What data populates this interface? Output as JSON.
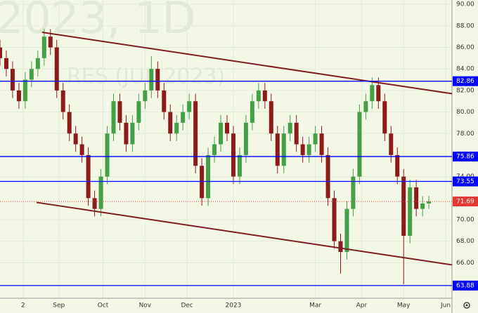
{
  "chart_data": {
    "type": "candlestick",
    "watermark": "2023, 1D",
    "watermark_sub": "RES (JUL 2023)",
    "x": [
      0,
      3,
      6,
      9,
      12,
      15,
      18,
      21,
      24,
      27,
      30,
      33,
      36,
      39,
      42,
      45,
      48,
      51,
      54,
      57,
      60,
      63,
      66,
      69,
      72,
      75,
      78,
      81,
      84,
      87,
      90,
      93,
      96,
      99,
      102,
      105,
      108,
      111,
      114,
      117,
      120,
      123,
      126,
      129,
      132,
      135,
      138,
      141,
      144,
      147,
      150,
      153,
      156,
      159,
      162,
      165,
      168,
      171,
      174,
      177,
      180,
      183,
      186,
      189,
      192,
      195,
      198,
      201,
      204
    ],
    "open": [
      86,
      85,
      84,
      82,
      81,
      83,
      84,
      85,
      87,
      86,
      82,
      80,
      78,
      77,
      76,
      72,
      71,
      74,
      78,
      81,
      79,
      77,
      79,
      81,
      82,
      84,
      82,
      80,
      78,
      79,
      80,
      81,
      75,
      72,
      76,
      77,
      79,
      78,
      74,
      76,
      79,
      81,
      82,
      81,
      78,
      75,
      78,
      79,
      77,
      76,
      77,
      78,
      76,
      72,
      68,
      67,
      71,
      74,
      80,
      81,
      82.5,
      81,
      78,
      76,
      74,
      68.5,
      73,
      71,
      71.5
    ],
    "high": [
      86.7,
      85.7,
      84.7,
      82.7,
      83.7,
      84.7,
      85.7,
      87.7,
      87.7,
      86.7,
      82.7,
      80.7,
      78.7,
      77.7,
      76.7,
      72.7,
      74.7,
      78.7,
      81.7,
      81.7,
      79.7,
      79.7,
      81.7,
      82.7,
      85.2,
      84.7,
      82.7,
      80.7,
      79.7,
      80.7,
      81.7,
      81.7,
      75.7,
      76.7,
      77.7,
      79.7,
      79.7,
      78.7,
      76.7,
      79.7,
      81.7,
      82.7,
      82.7,
      81.7,
      78.7,
      78.7,
      79.7,
      79.7,
      77.7,
      77.7,
      78.7,
      78.7,
      76.7,
      72.7,
      68.7,
      71.7,
      74.7,
      80.7,
      81.7,
      83.2,
      83.2,
      81.7,
      78.7,
      76.7,
      74.7,
      73.7,
      73.7,
      72.2,
      72.2
    ],
    "low": [
      84.3,
      83.3,
      81.3,
      80.3,
      80.3,
      82.3,
      83.3,
      84.3,
      85.3,
      81.3,
      79.3,
      77.3,
      76.3,
      75.3,
      71.3,
      70.3,
      70.3,
      73.3,
      77.3,
      78.3,
      76.3,
      76.3,
      78.3,
      80.3,
      81.3,
      81.3,
      79.3,
      77.3,
      77.3,
      78.3,
      79.3,
      74.3,
      71.3,
      71.3,
      75.3,
      76.3,
      77.3,
      73.3,
      73.3,
      75.3,
      78.3,
      80.3,
      80.3,
      77.3,
      74.3,
      74.3,
      77.3,
      76.3,
      75.3,
      75.3,
      76.3,
      75.3,
      71.3,
      67.3,
      65.0,
      66.3,
      70.3,
      73.3,
      79.3,
      80.3,
      80.3,
      77.3,
      75.3,
      73.3,
      64.0,
      67.8,
      70.3,
      70.3,
      71.0
    ],
    "close": [
      85,
      84,
      82,
      81,
      83,
      84,
      85,
      87,
      86,
      82,
      80,
      78,
      77,
      76,
      72,
      71,
      74,
      78,
      81,
      79,
      77,
      79,
      81,
      82,
      84,
      82,
      80,
      78,
      79,
      80,
      81,
      75,
      72,
      76,
      77,
      79,
      78,
      74,
      76,
      79,
      81,
      82,
      81,
      78,
      75,
      78,
      79,
      77,
      76,
      77,
      78,
      76,
      72,
      68,
      67,
      71,
      74,
      80,
      81,
      82.5,
      81,
      78,
      76,
      74,
      68.5,
      73,
      71,
      71.5,
      71.69
    ],
    "up_color": "#43a047",
    "down_color": "#8e1b1b",
    "xlim": [
      0,
      215
    ],
    "ylim": [
      62.7,
      90.4
    ],
    "xticks": [
      {
        "value": 11,
        "label": "2"
      },
      {
        "value": 28,
        "label": "Sep"
      },
      {
        "value": 49,
        "label": "Oct"
      },
      {
        "value": 69,
        "label": "Nov"
      },
      {
        "value": 89,
        "label": "Dec"
      },
      {
        "value": 111,
        "label": "2023"
      },
      {
        "value": 150,
        "label": "Mar"
      },
      {
        "value": 172,
        "label": "Apr"
      },
      {
        "value": 192,
        "label": "May"
      },
      {
        "value": 212,
        "label": "Jun"
      }
    ],
    "yticks": [
      {
        "value": 66,
        "label": "66.00"
      },
      {
        "value": 68,
        "label": "68.00"
      },
      {
        "value": 70,
        "label": "70.00"
      },
      {
        "value": 74,
        "label": "74.00"
      },
      {
        "value": 76,
        "label": "76.00"
      },
      {
        "value": 78,
        "label": "78.00"
      },
      {
        "value": 80,
        "label": "80.00"
      },
      {
        "value": 82,
        "label": "82.00"
      },
      {
        "value": 84,
        "label": "84.00"
      },
      {
        "value": 86,
        "label": "86.00"
      },
      {
        "value": 88,
        "label": "88.00"
      },
      {
        "value": 90,
        "label": "90.00"
      }
    ],
    "grid": true,
    "levels": [
      82.86,
      75.86,
      73.55,
      63.88
    ],
    "level_color": "#0000ff",
    "last_price": 71.69,
    "last_price_color": "#e53935",
    "trendlines": [
      {
        "x": [
          20,
          215
        ],
        "y": [
          87.4,
          81.7
        ]
      },
      {
        "x": [
          17.4,
          215
        ],
        "y": [
          71.6,
          65.8
        ]
      }
    ],
    "trendline_color": "#7b1f1f"
  }
}
